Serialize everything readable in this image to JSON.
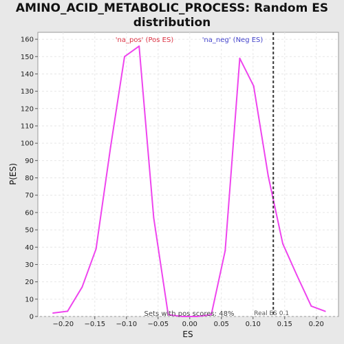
{
  "chart_data": {
    "type": "line",
    "title_line1": "AMINO_ACID_METABOLIC_PROCESS: Random ES",
    "title_line2": "distribution",
    "xlabel": "ES",
    "ylabel": "P(ES)",
    "xlim": [
      -0.24,
      0.235
    ],
    "ylim": [
      0,
      164
    ],
    "xticks": [
      -0.2,
      -0.15,
      -0.1,
      -0.05,
      0.0,
      0.05,
      0.1,
      0.15,
      0.2
    ],
    "xtick_labels": [
      "−0.20",
      "−0.15",
      "−0.10",
      "−0.05",
      "0.00",
      "0.05",
      "0.10",
      "0.15",
      "0.20"
    ],
    "yticks": [
      0,
      10,
      20,
      30,
      40,
      50,
      60,
      70,
      80,
      90,
      100,
      110,
      120,
      130,
      140,
      150,
      160
    ],
    "grid": true,
    "series": [
      {
        "color": "#ee44ee",
        "x": [
          -0.216,
          -0.193,
          -0.17,
          -0.148,
          -0.125,
          -0.103,
          -0.08,
          -0.057,
          -0.034,
          -0.012,
          0.011,
          0.034,
          0.056,
          0.079,
          0.101,
          0.124,
          0.147,
          0.169,
          0.192,
          0.214
        ],
        "y": [
          2,
          3,
          17,
          39,
          98,
          150,
          156,
          57,
          1,
          0,
          0,
          1,
          38,
          149,
          133,
          81,
          42,
          24,
          6,
          3
        ]
      }
    ],
    "vline": {
      "x": 0.132,
      "label": "Real ES 0.1",
      "color": "#333333"
    },
    "annotations": {
      "pos_label": "'na_pos' (Pos ES)",
      "pos_color": "#dd3344",
      "neg_label": "'na_neg' (Neg ES)",
      "neg_color": "#4444cc",
      "sets_text": "Sets with pos scores: 48%"
    }
  }
}
